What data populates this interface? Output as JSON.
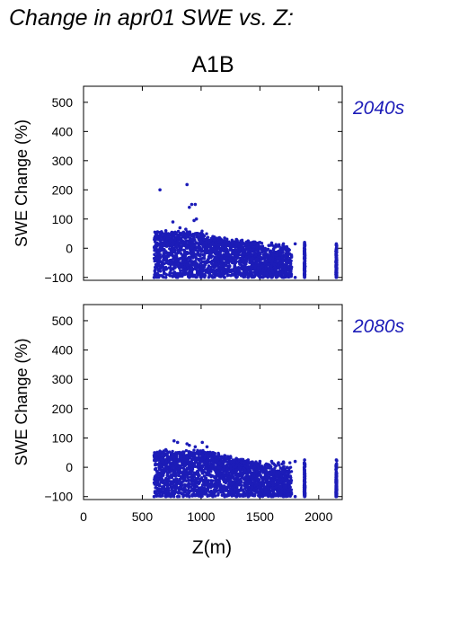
{
  "title": "Change in apr01 SWE vs. Z:",
  "scenario": "A1B",
  "colors": {
    "points": "#1c1cb8",
    "period_label": "#1c1cb8",
    "axis": "#000000"
  },
  "chart_data": [
    {
      "type": "scatter",
      "period_label": "2040s",
      "ylabel": "SWE Change (%)",
      "xlabel": "",
      "xlim": [
        0,
        2200
      ],
      "ylim": [
        -110,
        555
      ],
      "xticks": [
        0,
        500,
        1000,
        1500,
        2000
      ],
      "yticks": [
        -100,
        0,
        100,
        200,
        300,
        400,
        500
      ],
      "ytick_labels": [
        "−100",
        "0",
        "100",
        "200",
        "300",
        "400",
        "500"
      ],
      "series": [
        {
          "points": [
            [
              650,
              200
            ],
            [
              880,
              218
            ],
            [
              920,
              150
            ],
            [
              900,
              140
            ],
            [
              950,
              150
            ],
            [
              960,
              100
            ],
            [
              940,
              95
            ],
            [
              760,
              90
            ],
            [
              820,
              70
            ],
            [
              870,
              65
            ],
            [
              700,
              60
            ],
            [
              1000,
              50
            ],
            [
              1100,
              40
            ],
            [
              1200,
              35
            ],
            [
              1300,
              30
            ],
            [
              1400,
              25
            ],
            [
              1500,
              20
            ],
            [
              1600,
              18
            ],
            [
              1700,
              15
            ],
            [
              1800,
              15
            ],
            [
              1880,
              20
            ],
            [
              2150,
              15
            ],
            [
              610,
              30
            ],
            [
              630,
              40
            ],
            [
              680,
              45
            ],
            [
              720,
              50
            ],
            [
              780,
              55
            ],
            [
              850,
              55
            ],
            [
              950,
              50
            ],
            [
              600,
              -100
            ],
            [
              700,
              -100
            ],
            [
              800,
              -100
            ],
            [
              900,
              -100
            ],
            [
              1000,
              -100
            ],
            [
              1100,
              -100
            ],
            [
              1200,
              -100
            ],
            [
              1300,
              -100
            ],
            [
              1400,
              -100
            ],
            [
              1500,
              -100
            ],
            [
              1600,
              -100
            ],
            [
              1700,
              -100
            ],
            [
              1800,
              -100
            ],
            [
              1880,
              -100
            ],
            [
              2150,
              -100
            ]
          ]
        }
      ]
    },
    {
      "type": "scatter",
      "period_label": "2080s",
      "ylabel": "SWE Change (%)",
      "xlabel": "Z(m)",
      "xlim": [
        0,
        2200
      ],
      "ylim": [
        -110,
        555
      ],
      "xticks": [
        0,
        500,
        1000,
        1500,
        2000
      ],
      "yticks": [
        -100,
        0,
        100,
        200,
        300,
        400,
        500
      ],
      "ytick_labels": [
        "−100",
        "0",
        "100",
        "200",
        "300",
        "400",
        "500"
      ],
      "series": [
        {
          "points": [
            [
              770,
              90
            ],
            [
              800,
              85
            ],
            [
              880,
              80
            ],
            [
              900,
              75
            ],
            [
              1010,
              85
            ],
            [
              1050,
              70
            ],
            [
              950,
              70
            ],
            [
              700,
              60
            ],
            [
              650,
              55
            ],
            [
              600,
              40
            ],
            [
              1100,
              50
            ],
            [
              1200,
              40
            ],
            [
              1300,
              30
            ],
            [
              1400,
              25
            ],
            [
              1500,
              20
            ],
            [
              1600,
              20
            ],
            [
              1700,
              18
            ],
            [
              1800,
              20
            ],
            [
              1880,
              25
            ],
            [
              2150,
              25
            ],
            [
              600,
              -100
            ],
            [
              700,
              -100
            ],
            [
              800,
              -100
            ],
            [
              900,
              -100
            ],
            [
              1000,
              -100
            ],
            [
              1100,
              -100
            ],
            [
              1200,
              -100
            ],
            [
              1300,
              -100
            ],
            [
              1400,
              -100
            ],
            [
              1500,
              -100
            ],
            [
              1600,
              -100
            ],
            [
              1700,
              -100
            ],
            [
              1800,
              -100
            ],
            [
              1880,
              -100
            ],
            [
              2150,
              -100
            ]
          ]
        }
      ]
    }
  ]
}
